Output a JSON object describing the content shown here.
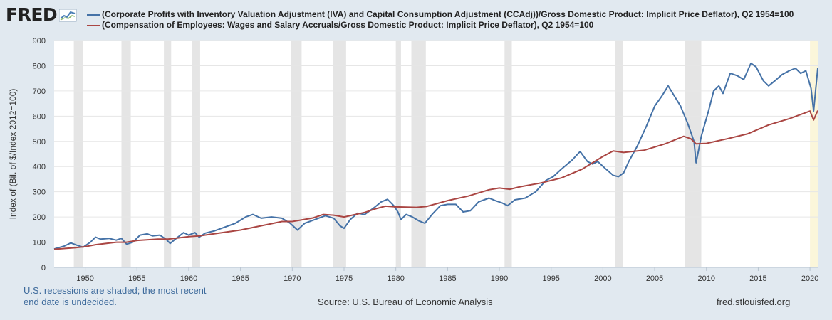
{
  "logo": {
    "text": "FRED",
    "icon": "line-chart-icon"
  },
  "colors": {
    "background": "#e1e9f0",
    "plot": "#ffffff",
    "grid": "#e6e6e6",
    "recession": "#e5e5e5",
    "undecided": "#fbf6da",
    "series1": "#4572a7",
    "series2": "#aa4643"
  },
  "footer": {
    "note_line1": "U.S. recessions are shaded; the most recent",
    "note_line2": "end date is undecided.",
    "source": "Source: U.S. Bureau of Economic Analysis",
    "site": "fred.stlouisfed.org"
  },
  "chart_data": {
    "type": "line",
    "title": "",
    "xlabel": "",
    "ylabel": "Index of (Bil. of $/Index 2012=100)",
    "xlim": [
      1947,
      2020.75
    ],
    "ylim": [
      0,
      900
    ],
    "yticks": [
      0,
      100,
      200,
      300,
      400,
      500,
      600,
      700,
      800,
      900
    ],
    "xticks": [
      1950,
      1955,
      1960,
      1965,
      1970,
      1975,
      1980,
      1985,
      1990,
      1995,
      2000,
      2005,
      2010,
      2015,
      2020
    ],
    "grid": "horizontal",
    "legend_position": "top",
    "recessions": [
      [
        1948.9,
        1949.8
      ],
      [
        1953.5,
        1954.4
      ],
      [
        1957.6,
        1958.3
      ],
      [
        1960.3,
        1961.1
      ],
      [
        1969.9,
        1970.9
      ],
      [
        1973.9,
        1975.2
      ],
      [
        1980.0,
        1980.5
      ],
      [
        1981.5,
        1982.9
      ],
      [
        1990.5,
        1991.2
      ],
      [
        2001.2,
        2001.9
      ],
      [
        2007.9,
        2009.5
      ]
    ],
    "undecided_recession": [
      2020.0,
      2020.75
    ],
    "series": [
      {
        "name": "(Corporate Profits with Inventory Valuation Adjustment (IVA) and Capital Consumption Adjustment (CCAdj))/Gross Domestic Product: Implicit Price Deflator), Q2 1954=100",
        "color": "#4572a7",
        "points": [
          [
            1947,
            73
          ],
          [
            1948,
            85
          ],
          [
            1948.6,
            97
          ],
          [
            1949.2,
            88
          ],
          [
            1949.8,
            80
          ],
          [
            1950.5,
            100
          ],
          [
            1951,
            120
          ],
          [
            1951.5,
            112
          ],
          [
            1952.3,
            115
          ],
          [
            1953,
            108
          ],
          [
            1953.5,
            115
          ],
          [
            1954,
            92
          ],
          [
            1954.6,
            100
          ],
          [
            1955.3,
            128
          ],
          [
            1956,
            133
          ],
          [
            1956.5,
            125
          ],
          [
            1957.2,
            128
          ],
          [
            1957.8,
            112
          ],
          [
            1958.2,
            95
          ],
          [
            1958.8,
            115
          ],
          [
            1959.5,
            138
          ],
          [
            1960,
            128
          ],
          [
            1960.6,
            138
          ],
          [
            1961,
            120
          ],
          [
            1961.6,
            136
          ],
          [
            1962.5,
            145
          ],
          [
            1963.5,
            160
          ],
          [
            1964.5,
            175
          ],
          [
            1965.5,
            200
          ],
          [
            1966.2,
            210
          ],
          [
            1967,
            195
          ],
          [
            1968,
            200
          ],
          [
            1969,
            195
          ],
          [
            1969.8,
            175
          ],
          [
            1970.5,
            148
          ],
          [
            1971.2,
            175
          ],
          [
            1972.2,
            190
          ],
          [
            1973.2,
            205
          ],
          [
            1974,
            195
          ],
          [
            1974.6,
            165
          ],
          [
            1975,
            155
          ],
          [
            1975.6,
            190
          ],
          [
            1976.3,
            215
          ],
          [
            1977,
            210
          ],
          [
            1978,
            240
          ],
          [
            1978.6,
            260
          ],
          [
            1979.2,
            270
          ],
          [
            1979.8,
            245
          ],
          [
            1980.2,
            220
          ],
          [
            1980.5,
            190
          ],
          [
            1981,
            210
          ],
          [
            1981.6,
            200
          ],
          [
            1982.2,
            185
          ],
          [
            1982.8,
            175
          ],
          [
            1983.5,
            210
          ],
          [
            1984.3,
            245
          ],
          [
            1985,
            250
          ],
          [
            1985.8,
            250
          ],
          [
            1986.5,
            220
          ],
          [
            1987.2,
            225
          ],
          [
            1988,
            260
          ],
          [
            1989,
            275
          ],
          [
            1989.6,
            265
          ],
          [
            1990.3,
            255
          ],
          [
            1990.8,
            245
          ],
          [
            1991.5,
            268
          ],
          [
            1992.5,
            275
          ],
          [
            1993.5,
            300
          ],
          [
            1994.5,
            345
          ],
          [
            1995.2,
            360
          ],
          [
            1996,
            390
          ],
          [
            1997,
            425
          ],
          [
            1997.8,
            460
          ],
          [
            1998.5,
            420
          ],
          [
            1999,
            410
          ],
          [
            1999.5,
            420
          ],
          [
            2000.3,
            390
          ],
          [
            2001,
            365
          ],
          [
            2001.5,
            360
          ],
          [
            2002,
            375
          ],
          [
            2002.5,
            420
          ],
          [
            2003.3,
            480
          ],
          [
            2004.2,
            560
          ],
          [
            2005,
            640
          ],
          [
            2005.7,
            680
          ],
          [
            2006.3,
            720
          ],
          [
            2006.9,
            680
          ],
          [
            2007.5,
            640
          ],
          [
            2008.2,
            570
          ],
          [
            2008.8,
            500
          ],
          [
            2009,
            415
          ],
          [
            2009.5,
            520
          ],
          [
            2010.2,
            620
          ],
          [
            2010.7,
            700
          ],
          [
            2011.2,
            720
          ],
          [
            2011.6,
            690
          ],
          [
            2012.3,
            770
          ],
          [
            2013,
            760
          ],
          [
            2013.6,
            745
          ],
          [
            2014.3,
            810
          ],
          [
            2014.8,
            795
          ],
          [
            2015.5,
            740
          ],
          [
            2016,
            720
          ],
          [
            2016.6,
            740
          ],
          [
            2017.3,
            765
          ],
          [
            2018,
            780
          ],
          [
            2018.6,
            790
          ],
          [
            2019.1,
            770
          ],
          [
            2019.6,
            780
          ],
          [
            2020.1,
            710
          ],
          [
            2020.35,
            620
          ],
          [
            2020.75,
            790
          ]
        ]
      },
      {
        "name": "(Compensation of Employees: Wages and Salary Accruals/Gross Domestic Product: Implicit Price Deflator), Q2 1954=100",
        "color": "#aa4643",
        "points": [
          [
            1947,
            72
          ],
          [
            1949,
            78
          ],
          [
            1950,
            82
          ],
          [
            1951,
            90
          ],
          [
            1953,
            100
          ],
          [
            1954,
            100
          ],
          [
            1955,
            107
          ],
          [
            1957,
            112
          ],
          [
            1958,
            112
          ],
          [
            1960,
            122
          ],
          [
            1961,
            125
          ],
          [
            1965,
            148
          ],
          [
            1967,
            165
          ],
          [
            1969,
            182
          ],
          [
            1970,
            182
          ],
          [
            1972,
            196
          ],
          [
            1973,
            210
          ],
          [
            1974,
            207
          ],
          [
            1975,
            200
          ],
          [
            1977,
            218
          ],
          [
            1978,
            232
          ],
          [
            1979,
            243
          ],
          [
            1980,
            240
          ],
          [
            1982,
            238
          ],
          [
            1983,
            242
          ],
          [
            1985,
            265
          ],
          [
            1987,
            283
          ],
          [
            1989,
            308
          ],
          [
            1990,
            315
          ],
          [
            1991,
            310
          ],
          [
            1992,
            320
          ],
          [
            1994,
            335
          ],
          [
            1996,
            355
          ],
          [
            1998,
            390
          ],
          [
            2000,
            440
          ],
          [
            2001,
            462
          ],
          [
            2002,
            456
          ],
          [
            2004,
            465
          ],
          [
            2006,
            490
          ],
          [
            2007.8,
            520
          ],
          [
            2008.5,
            510
          ],
          [
            2009,
            490
          ],
          [
            2010,
            492
          ],
          [
            2012,
            510
          ],
          [
            2014,
            530
          ],
          [
            2016,
            565
          ],
          [
            2018,
            590
          ],
          [
            2020,
            620
          ],
          [
            2020.35,
            585
          ],
          [
            2020.75,
            622
          ]
        ]
      }
    ]
  }
}
